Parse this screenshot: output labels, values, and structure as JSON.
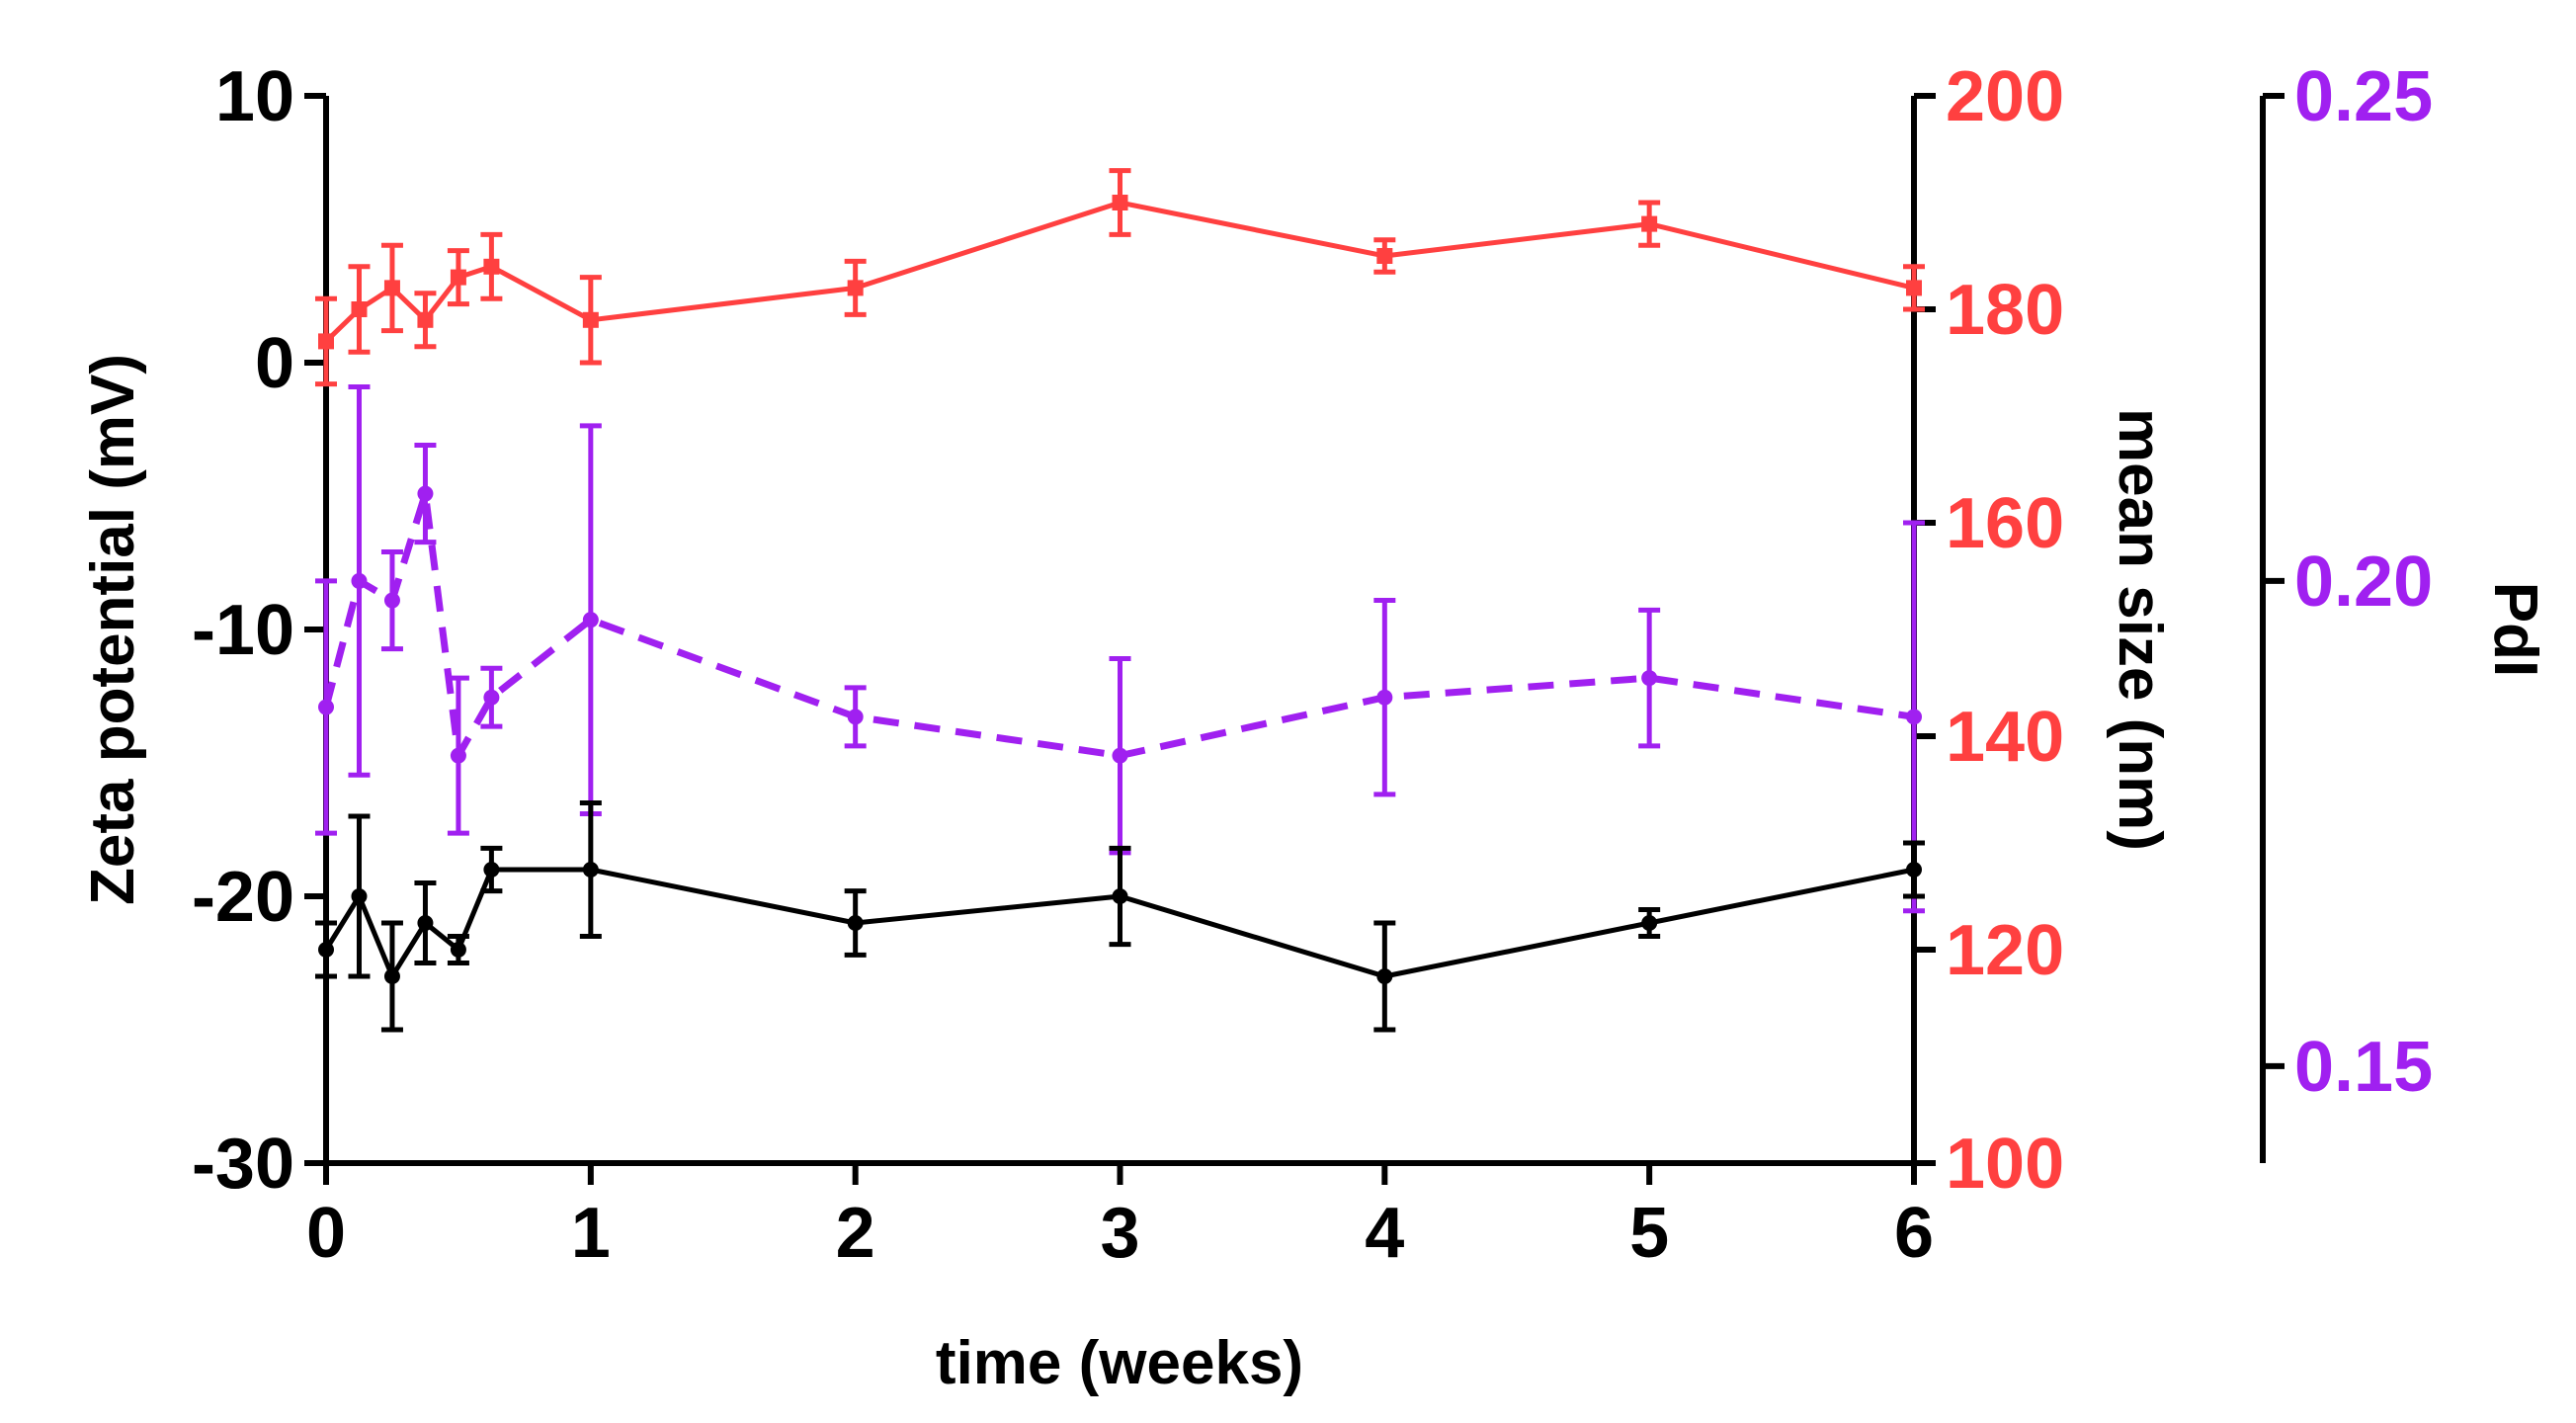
{
  "chart_data": {
    "type": "line",
    "title": "",
    "xlabel": "time (weeks)",
    "xlim": [
      0,
      6
    ],
    "xticks": [
      0,
      1,
      2,
      3,
      4,
      5,
      6
    ],
    "xtick_labels": [
      "0",
      "1",
      "2",
      "3",
      "4",
      "5",
      "6"
    ],
    "axes": {
      "zeta": {
        "label": "Zeta potential (mV)",
        "side": "left",
        "color": "#000000",
        "range": [
          -30,
          10
        ],
        "ticks": [
          10,
          0,
          -10,
          -20,
          -30
        ],
        "tick_labels": [
          "10",
          "0",
          "-10",
          "-20",
          "-30"
        ]
      },
      "size": {
        "label": "mean size (nm)",
        "side": "right",
        "color": "#ff4040",
        "range": [
          100,
          200
        ],
        "ticks": [
          200,
          180,
          160,
          140,
          120,
          100
        ],
        "tick_labels": [
          "200",
          "180",
          "160",
          "140",
          "120",
          "100"
        ]
      },
      "pdi": {
        "label": "PdI",
        "side": "far-right",
        "color": "#a020f0",
        "range": [
          0.14,
          0.25
        ],
        "ticks": [
          0.25,
          0.2,
          0.15
        ],
        "tick_labels": [
          "0.25",
          "0.20",
          "0.15"
        ]
      }
    },
    "series": [
      {
        "name": "mean size",
        "axis": "size",
        "color": "#ff4040",
        "line": "solid",
        "marker": "square",
        "x": [
          0,
          0.125,
          0.25,
          0.375,
          0.5,
          0.625,
          1,
          2,
          3,
          4,
          5,
          6
        ],
        "y": [
          177,
          180,
          182,
          179,
          183,
          184,
          179,
          182,
          190,
          185,
          188,
          182
        ],
        "error": [
          4,
          4,
          4,
          2.5,
          2.5,
          3,
          4,
          2.5,
          3,
          1.5,
          2,
          2
        ]
      },
      {
        "name": "PdI",
        "axis": "pdi",
        "color": "#a020f0",
        "line": "dashed",
        "marker": "circle",
        "x": [
          0,
          0.125,
          0.25,
          0.375,
          0.5,
          0.625,
          1,
          2,
          3,
          4,
          5,
          6
        ],
        "y": [
          0.187,
          0.2,
          0.198,
          0.209,
          0.182,
          0.188,
          0.196,
          0.186,
          0.182,
          0.188,
          0.19,
          0.186
        ],
        "error": [
          0.013,
          0.02,
          0.005,
          0.005,
          0.008,
          0.003,
          0.02,
          0.003,
          0.01,
          0.01,
          0.007,
          0.02
        ]
      },
      {
        "name": "Zeta potential",
        "axis": "zeta",
        "color": "#000000",
        "line": "solid",
        "marker": "circle",
        "x": [
          0,
          0.125,
          0.25,
          0.375,
          0.5,
          0.625,
          1,
          2,
          3,
          4,
          5,
          6
        ],
        "y": [
          -22,
          -20,
          -23,
          -21,
          -22,
          -19,
          -19,
          -21,
          -20,
          -23,
          -21,
          -19
        ],
        "error": [
          1,
          3,
          2,
          1.5,
          0.5,
          0.8,
          2.5,
          1.2,
          1.8,
          2,
          0.5,
          1
        ]
      }
    ]
  }
}
